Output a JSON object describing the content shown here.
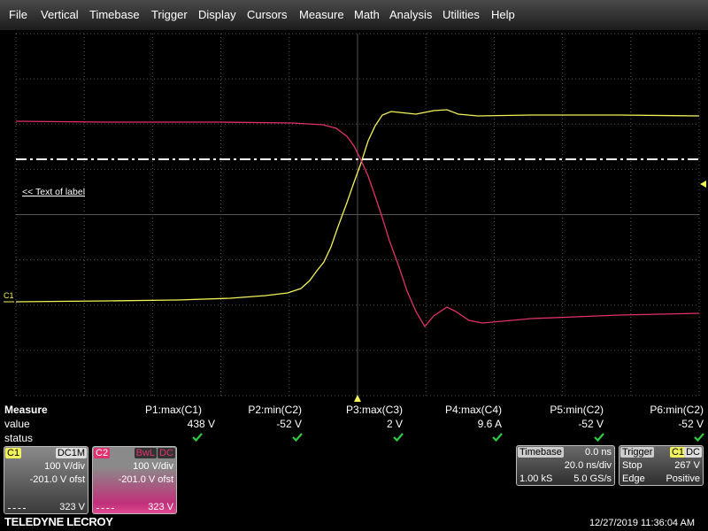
{
  "menu": [
    "File",
    "Vertical",
    "Timebase",
    "Trigger",
    "Display",
    "Cursors",
    "Measure",
    "Math",
    "Analysis",
    "Utilities",
    "Help"
  ],
  "label": "<< Text of label",
  "channel_marker": "C1",
  "measure": {
    "title": "Measure",
    "row_labels": [
      "value",
      "status"
    ],
    "columns": [
      {
        "name": "P1:max(C1)",
        "value": "438 V"
      },
      {
        "name": "P2:min(C2)",
        "value": "-52 V"
      },
      {
        "name": "P3:max(C3)",
        "value": "2 V"
      },
      {
        "name": "P4:max(C4)",
        "value": "9.6 A"
      },
      {
        "name": "P5:min(C2)",
        "value": "-52 V"
      },
      {
        "name": "P6:min(C2)",
        "value": "-52 V"
      }
    ]
  },
  "channels": [
    {
      "name": "C1",
      "tags": [
        "DC1M"
      ],
      "scale": "100 V/div",
      "offset": "-201.0 V ofst",
      "level": "323 V"
    },
    {
      "name": "C2",
      "tags": [
        "BwL",
        "DC"
      ],
      "scale": "100 V/div",
      "offset": "-201.0 V ofst",
      "level": "323 V"
    }
  ],
  "timebase": {
    "title": "Timebase",
    "delay": "0.0 ns",
    "scale": "20.0 ns/div",
    "samples": "1.00 kS",
    "rate": "5.0 GS/s"
  },
  "trigger": {
    "title": "Trigger",
    "tags": [
      "C1",
      "DC"
    ],
    "mode": "Stop",
    "level": "267 V",
    "type": "Edge",
    "slope": "Positive"
  },
  "brand": "TELEDYNE LECROY",
  "timestamp": "12/27/2019 11:36:04 AM"
}
